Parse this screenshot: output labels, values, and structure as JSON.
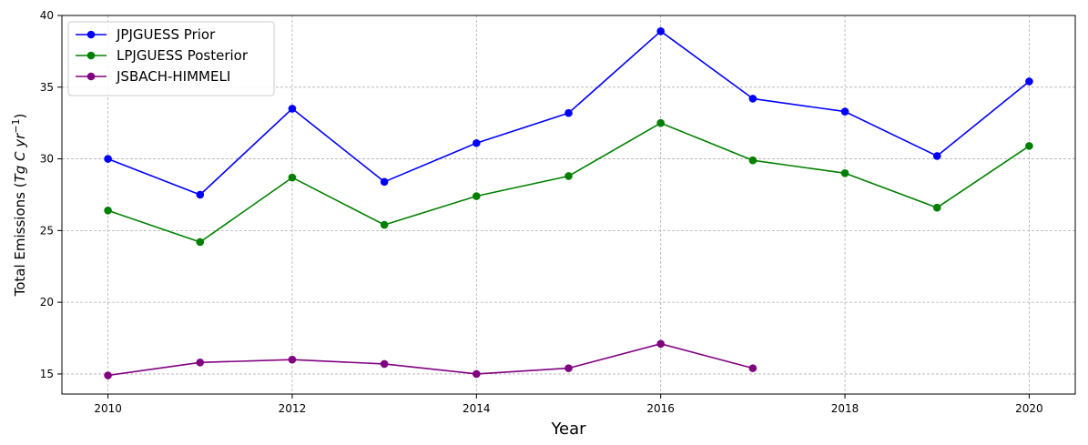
{
  "chart_data": {
    "type": "line",
    "title": "",
    "xlabel": "Year",
    "ylabel": {
      "prefix": "Total Emissions (",
      "unit_main": "Tg C yr",
      "unit_exp": "−1",
      "suffix": ")"
    },
    "xlim": [
      2009.5,
      2020.5
    ],
    "ylim": [
      13.6,
      40
    ],
    "xticks": [
      2010,
      2012,
      2014,
      2016,
      2018,
      2020
    ],
    "yticks": [
      15,
      20,
      25,
      30,
      35,
      40
    ],
    "grid": true,
    "legend_position": "top-left",
    "series": [
      {
        "name": "JPJGUESS Prior",
        "color": "#0000ff",
        "x": [
          2010,
          2011,
          2012,
          2013,
          2014,
          2015,
          2016,
          2017,
          2018,
          2019,
          2020
        ],
        "y": [
          30.0,
          27.5,
          33.5,
          28.4,
          31.1,
          33.2,
          38.9,
          34.2,
          33.3,
          30.2,
          35.4
        ]
      },
      {
        "name": "LPJGUESS Posterior",
        "color": "#008000",
        "x": [
          2010,
          2011,
          2012,
          2013,
          2014,
          2015,
          2016,
          2017,
          2018,
          2019,
          2020
        ],
        "y": [
          26.4,
          24.2,
          28.7,
          25.4,
          27.4,
          28.8,
          32.5,
          29.9,
          29.0,
          26.6,
          30.9
        ]
      },
      {
        "name": "JSBACH-HIMMELI",
        "color": "#800080",
        "x": [
          2010,
          2011,
          2012,
          2013,
          2014,
          2015,
          2016,
          2017
        ],
        "y": [
          14.9,
          15.8,
          16.0,
          15.7,
          15.0,
          15.4,
          17.1,
          15.4
        ]
      }
    ]
  }
}
